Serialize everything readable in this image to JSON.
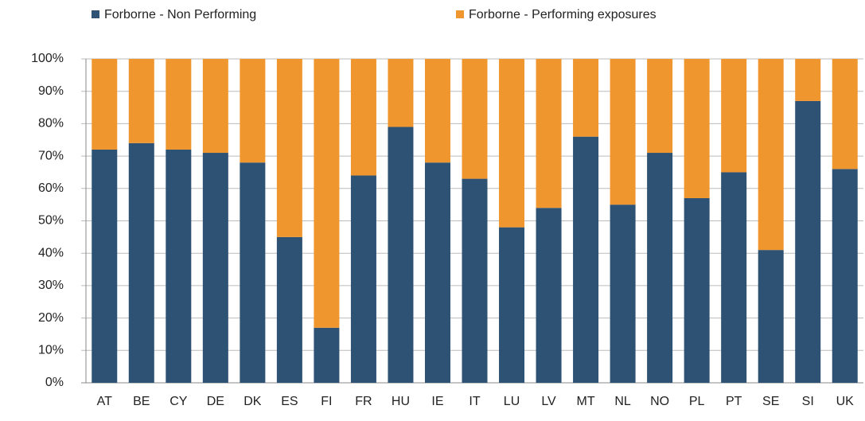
{
  "chart_data": {
    "type": "stacked_bar",
    "categories": [
      "AT",
      "BE",
      "CY",
      "DE",
      "DK",
      "ES",
      "FI",
      "FR",
      "HU",
      "IE",
      "IT",
      "LU",
      "LV",
      "MT",
      "NL",
      "NO",
      "PL",
      "PT",
      "SE",
      "SI",
      "UK"
    ],
    "series": [
      {
        "name": "Forborne - Non Performing",
        "color": "#2e5274",
        "values": [
          72,
          74,
          72,
          71,
          68,
          45,
          17,
          64,
          79,
          68,
          63,
          48,
          54,
          76,
          55,
          71,
          57,
          65,
          41,
          87,
          66
        ]
      },
      {
        "name": "Forborne - Performing exposures",
        "color": "#f0962f",
        "values": [
          28,
          26,
          28,
          29,
          32,
          55,
          83,
          36,
          21,
          32,
          37,
          52,
          46,
          24,
          45,
          29,
          43,
          35,
          59,
          13,
          34
        ]
      }
    ],
    "ylim": [
      0,
      100
    ],
    "yticks": [
      {
        "value": 0,
        "label": "0%"
      },
      {
        "value": 10,
        "label": "10%"
      },
      {
        "value": 20,
        "label": "20%"
      },
      {
        "value": 30,
        "label": "30%"
      },
      {
        "value": 40,
        "label": "40%"
      },
      {
        "value": 50,
        "label": "50%"
      },
      {
        "value": 60,
        "label": "60%"
      },
      {
        "value": 70,
        "label": "70%"
      },
      {
        "value": 80,
        "label": "80%"
      },
      {
        "value": 90,
        "label": "90%"
      },
      {
        "value": 100,
        "label": "100%"
      }
    ],
    "grid": true,
    "legend": "top"
  }
}
